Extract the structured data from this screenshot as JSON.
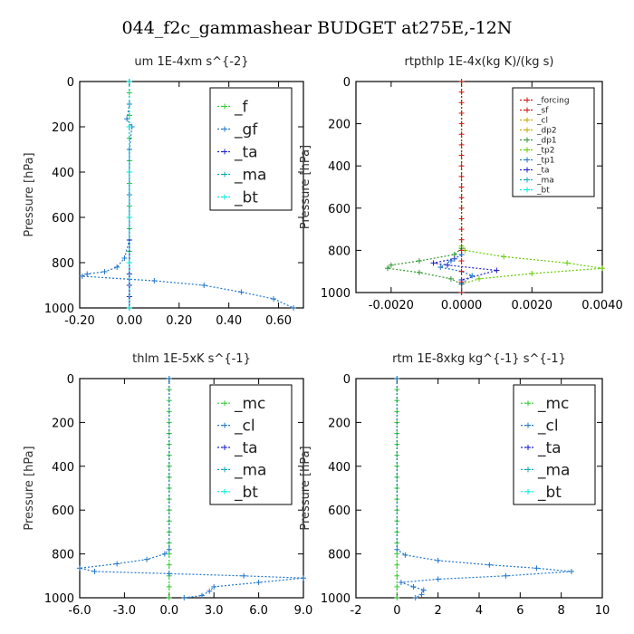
{
  "page": {
    "title": "044_f2c_gammashear  BUDGET at275E,-12N"
  },
  "colors": {
    "f": "#33cc33",
    "gf": "#2277cc",
    "ta": "#2222cc",
    "ma": "#11aabb",
    "bt": "#00eedd",
    "mc": "#33cc33",
    "cl": "#2277cc",
    "forcing": "#dd1111",
    "sf": "#dd1111",
    "dp2": "#ccaa00",
    "dp1": "#339933",
    "tp2": "#66cc00",
    "tp1": "#2277cc",
    "axis": "#000000"
  },
  "chart_data": [
    {
      "type": "line",
      "title": "um   1E-4xm s^{-2}",
      "ylabel": "Pressure [hPa]",
      "xlim": [
        -0.2,
        0.7
      ],
      "ylim": [
        1000,
        0
      ],
      "xticks": [
        -0.2,
        0.0,
        0.2,
        0.4,
        0.6
      ],
      "xtick_labels": [
        "-0.20",
        "0.00",
        "0.20",
        "0.40",
        "0.60"
      ],
      "yticks": [
        0,
        200,
        400,
        600,
        800,
        1000
      ],
      "ytick_labels": [
        "0",
        "200",
        "400",
        "600",
        "800",
        "1000"
      ],
      "legend": {
        "position": "top-right",
        "size": "large",
        "entries": [
          {
            "label": "_f",
            "color_key": "f"
          },
          {
            "label": "_gf",
            "color_key": "gf"
          },
          {
            "label": "_ta",
            "color_key": "ta"
          },
          {
            "label": "_ma",
            "color_key": "ma"
          },
          {
            "label": "_bt",
            "color_key": "bt"
          }
        ]
      },
      "series": [
        {
          "key": "f",
          "x": [
            0,
            0,
            0,
            0,
            0,
            0,
            0,
            0,
            0,
            0,
            0,
            0,
            0,
            0,
            0,
            0,
            0,
            0,
            0,
            0,
            0
          ],
          "y": [
            0,
            50,
            100,
            150,
            200,
            250,
            300,
            350,
            400,
            450,
            500,
            550,
            600,
            650,
            700,
            750,
            800,
            850,
            900,
            950,
            1000
          ]
        },
        {
          "key": "gf",
          "x": [
            0,
            0,
            -0.01,
            0.01,
            0,
            0,
            0,
            -0.02,
            -0.05,
            -0.1,
            -0.17,
            -0.19,
            0.1,
            0.3,
            0.45,
            0.58,
            0.66
          ],
          "y": [
            0,
            100,
            165,
            200,
            300,
            500,
            700,
            780,
            820,
            840,
            850,
            860,
            880,
            900,
            930,
            960,
            1000
          ]
        },
        {
          "key": "ta",
          "x": [
            0,
            0,
            0,
            0,
            0,
            0,
            0,
            0,
            0,
            0
          ],
          "y": [
            0,
            200,
            400,
            600,
            800,
            900,
            950,
            1000,
            850,
            700
          ]
        },
        {
          "key": "ma",
          "x": [
            0,
            0,
            0,
            0,
            0,
            0
          ],
          "y": [
            0,
            200,
            400,
            600,
            800,
            1000
          ]
        },
        {
          "key": "bt",
          "x": [
            0,
            0,
            0,
            0,
            0,
            0
          ],
          "y": [
            0,
            200,
            400,
            600,
            800,
            1000
          ]
        }
      ]
    },
    {
      "type": "line",
      "title": "rtpthlp   1E-4x(kg K)/(kg s)",
      "ylabel": "Pressure [hPa]",
      "xlim": [
        -0.003,
        0.004
      ],
      "ylim": [
        1000,
        0
      ],
      "xticks": [
        -0.002,
        0.0,
        0.002,
        0.004
      ],
      "xtick_labels": [
        "-0.0020",
        "0.0000",
        "0.0020",
        "0.0040"
      ],
      "yticks": [
        0,
        200,
        400,
        600,
        800,
        1000
      ],
      "ytick_labels": [
        "0",
        "200",
        "400",
        "600",
        "800",
        "1000"
      ],
      "legend": {
        "position": "top-right",
        "size": "small",
        "entries": [
          {
            "label": "_forcing",
            "color_key": "forcing"
          },
          {
            "label": "_sf",
            "color_key": "sf"
          },
          {
            "label": "_cl",
            "color_key": "dp2"
          },
          {
            "label": "_dp2",
            "color_key": "dp2"
          },
          {
            "label": "_dp1",
            "color_key": "dp1"
          },
          {
            "label": "_tp2",
            "color_key": "tp2"
          },
          {
            "label": "_tp1",
            "color_key": "tp1"
          },
          {
            "label": "_ta",
            "color_key": "ta"
          },
          {
            "label": "_ma",
            "color_key": "ma"
          },
          {
            "label": "_bt",
            "color_key": "bt"
          }
        ]
      },
      "series": [
        {
          "key": "tp2",
          "x": [
            0,
            0,
            0.0001,
            0.0012,
            0.003,
            0.004,
            0.002,
            0.0005,
            0,
            0
          ],
          "y": [
            0,
            780,
            800,
            830,
            860,
            885,
            910,
            935,
            960,
            1000
          ]
        },
        {
          "key": "dp1",
          "x": [
            0,
            0,
            -0.0002,
            -0.0012,
            -0.002,
            -0.0021,
            -0.0012,
            -0.0003,
            0,
            0
          ],
          "y": [
            0,
            790,
            820,
            850,
            870,
            885,
            905,
            935,
            960,
            1000
          ]
        },
        {
          "key": "ta",
          "x": [
            0,
            -0.0002,
            -0.0008,
            -0.0004,
            0.001,
            0,
            0
          ],
          "y": [
            820,
            840,
            860,
            870,
            895,
            940,
            1000
          ]
        },
        {
          "key": "tp1",
          "x": [
            0,
            -0.0003,
            -0.0006,
            0,
            0.0003,
            0
          ],
          "y": [
            820,
            850,
            880,
            900,
            920,
            960
          ]
        },
        {
          "key": "forcing",
          "x": [
            0,
            0,
            0,
            0,
            0,
            0,
            0,
            0,
            0,
            0,
            0,
            0,
            0,
            0,
            0,
            0,
            0,
            0,
            0,
            0,
            0
          ],
          "y": [
            0,
            50,
            100,
            150,
            200,
            250,
            300,
            350,
            400,
            450,
            500,
            550,
            600,
            650,
            700,
            750,
            800,
            850,
            900,
            950,
            1000
          ]
        }
      ]
    },
    {
      "type": "line",
      "title": "thlm   1E-5xK s^{-1}",
      "ylabel": "Pressure [hPa]",
      "xlim": [
        -6.0,
        9.0
      ],
      "ylim": [
        1000,
        0
      ],
      "xticks": [
        -6.0,
        -3.0,
        0.0,
        3.0,
        6.0,
        9.0
      ],
      "xtick_labels": [
        "-6.0",
        "-3.0",
        "0.0",
        "3.0",
        "6.0",
        "9.0"
      ],
      "yticks": [
        0,
        200,
        400,
        600,
        800,
        1000
      ],
      "ytick_labels": [
        "0",
        "200",
        "400",
        "600",
        "800",
        "1000"
      ],
      "legend": {
        "position": "top-right",
        "size": "large",
        "entries": [
          {
            "label": "_mc",
            "color_key": "mc"
          },
          {
            "label": "_cl",
            "color_key": "cl"
          },
          {
            "label": "_ta",
            "color_key": "ta"
          },
          {
            "label": "_ma",
            "color_key": "ma"
          },
          {
            "label": "_bt",
            "color_key": "bt"
          }
        ]
      },
      "series": [
        {
          "key": "mc",
          "x": [
            0,
            0,
            0,
            0,
            0,
            0,
            0,
            0,
            0,
            0,
            0,
            0,
            0,
            0,
            0,
            0,
            0,
            0,
            0,
            0,
            0
          ],
          "y": [
            0,
            50,
            100,
            150,
            200,
            250,
            300,
            350,
            400,
            450,
            500,
            550,
            600,
            650,
            700,
            750,
            800,
            850,
            900,
            950,
            1000
          ]
        },
        {
          "key": "cl",
          "x": [
            0,
            0,
            -0.3,
            -1.5,
            -3.5,
            -6.0,
            -5.0,
            0,
            5.0,
            9.0,
            6.0,
            3.0,
            2.7,
            2.2,
            1.0
          ],
          "y": [
            0,
            780,
            800,
            825,
            845,
            865,
            880,
            890,
            900,
            910,
            930,
            950,
            970,
            990,
            1000
          ]
        }
      ]
    },
    {
      "type": "line",
      "title": "rtm   1E-8xkg kg^{-1} s^{-1}",
      "ylabel": "Pressure [hPa]",
      "xlim": [
        -2,
        10
      ],
      "ylim": [
        1000,
        0
      ],
      "xticks": [
        -2,
        0,
        2,
        4,
        6,
        8,
        10
      ],
      "xtick_labels": [
        "-2",
        "0",
        "2",
        "4",
        "6",
        "8",
        "10"
      ],
      "yticks": [
        0,
        200,
        400,
        600,
        800,
        1000
      ],
      "ytick_labels": [
        "0",
        "200",
        "400",
        "600",
        "800",
        "1000"
      ],
      "legend": {
        "position": "top-right",
        "size": "large",
        "entries": [
          {
            "label": "_mc",
            "color_key": "mc"
          },
          {
            "label": "_cl",
            "color_key": "cl"
          },
          {
            "label": "_ta",
            "color_key": "ta"
          },
          {
            "label": "_ma",
            "color_key": "ma"
          },
          {
            "label": "_bt",
            "color_key": "bt"
          }
        ]
      },
      "series": [
        {
          "key": "mc",
          "x": [
            0,
            0,
            0,
            0,
            0,
            0,
            0,
            0,
            0,
            0,
            0,
            0,
            0,
            0,
            0,
            0,
            0,
            0,
            0,
            0,
            0
          ],
          "y": [
            0,
            50,
            100,
            150,
            200,
            250,
            300,
            350,
            400,
            450,
            500,
            550,
            600,
            650,
            700,
            750,
            800,
            850,
            900,
            950,
            1000
          ]
        },
        {
          "key": "cl",
          "x": [
            0,
            0,
            0.4,
            2.0,
            4.5,
            6.8,
            8.5,
            5.3,
            2.0,
            0.2,
            0.8,
            1.3,
            1.2,
            0.9
          ],
          "y": [
            0,
            780,
            805,
            830,
            850,
            865,
            880,
            900,
            915,
            930,
            950,
            965,
            985,
            1000
          ]
        }
      ]
    }
  ]
}
